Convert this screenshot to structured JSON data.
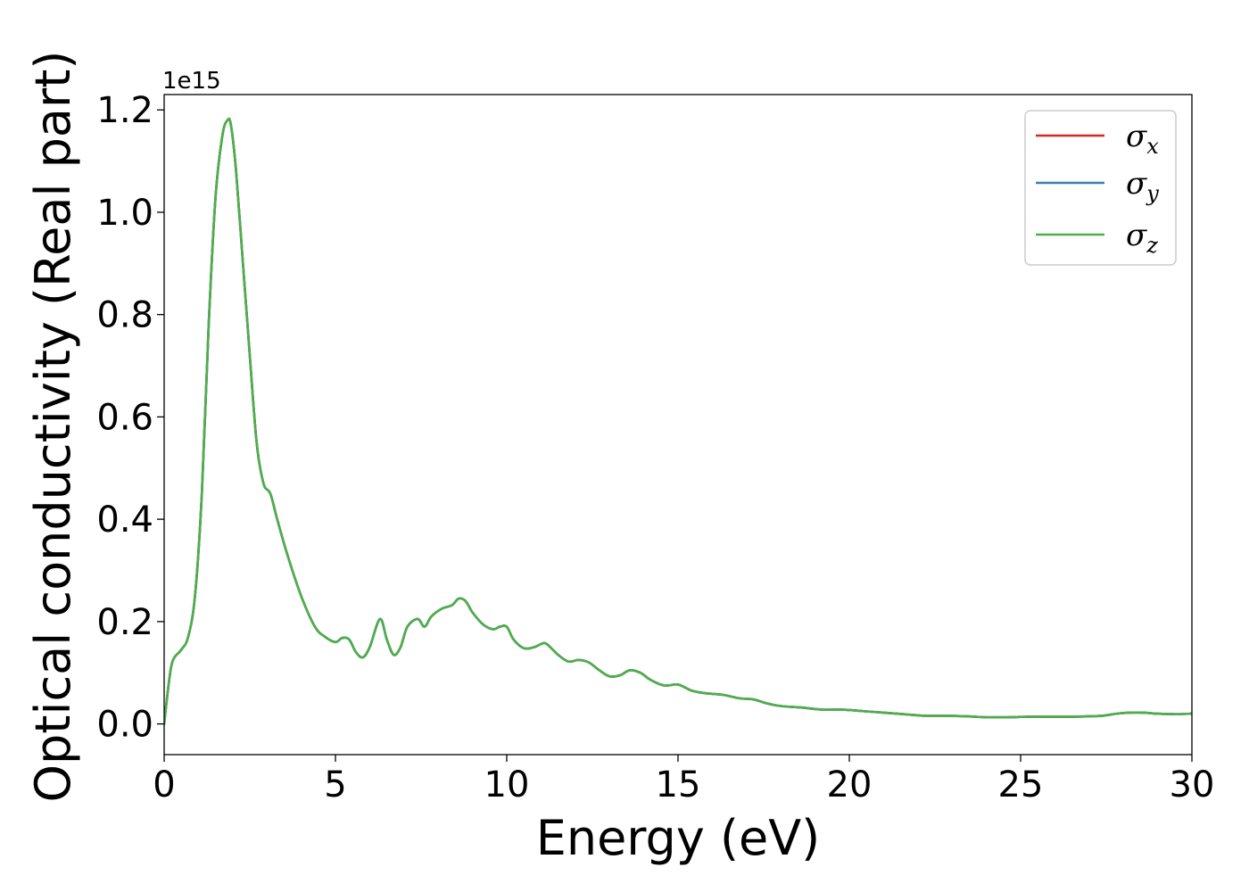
{
  "chart_data": {
    "type": "line",
    "xlabel": "Energy (eV)",
    "ylabel": "Optical conductivity (Real part)",
    "y_offset_label": "1e15",
    "xlim": [
      0,
      30
    ],
    "ylim": [
      -0.06,
      1.23
    ],
    "x_ticks": [
      0,
      5,
      10,
      15,
      20,
      25,
      30
    ],
    "x_tick_labels": [
      "0",
      "5",
      "10",
      "15",
      "20",
      "25",
      "30"
    ],
    "y_ticks": [
      0.0,
      0.2,
      0.4,
      0.6,
      0.8,
      1.0,
      1.2
    ],
    "y_tick_labels": [
      "0.0",
      "0.2",
      "0.4",
      "0.6",
      "0.8",
      "1.0",
      "1.2"
    ],
    "grid": false,
    "legend_position": "top-right",
    "x": [
      0,
      0.1,
      0.2,
      0.3,
      0.5,
      0.7,
      0.9,
      1.1,
      1.3,
      1.5,
      1.7,
      1.85,
      1.95,
      2.1,
      2.3,
      2.5,
      2.7,
      2.9,
      3.1,
      3.3,
      3.6,
      4.0,
      4.4,
      4.7,
      5.0,
      5.2,
      5.4,
      5.6,
      5.8,
      6.0,
      6.3,
      6.5,
      6.7,
      6.9,
      7.1,
      7.4,
      7.6,
      7.8,
      8.1,
      8.4,
      8.6,
      8.8,
      9.0,
      9.3,
      9.6,
      9.8,
      10.0,
      10.2,
      10.5,
      10.8,
      11.1,
      11.3,
      11.5,
      11.8,
      12.1,
      12.4,
      12.7,
      13.0,
      13.3,
      13.6,
      13.9,
      14.2,
      14.6,
      15.0,
      15.4,
      15.8,
      16.3,
      16.8,
      17.2,
      17.6,
      18.0,
      18.6,
      19.2,
      19.8,
      20.4,
      21.0,
      21.6,
      22.2,
      22.8,
      23.4,
      24.0,
      24.6,
      25.2,
      25.8,
      26.4,
      27.0,
      27.4,
      27.8,
      28.2,
      28.6,
      29.0,
      29.5,
      30.0
    ],
    "series": [
      {
        "name": "σx",
        "color": "#d62728",
        "values": [
          0.0,
          0.06,
          0.11,
          0.13,
          0.145,
          0.17,
          0.25,
          0.45,
          0.78,
          1.03,
          1.15,
          1.18,
          1.17,
          1.08,
          0.9,
          0.72,
          0.55,
          0.47,
          0.45,
          0.4,
          0.33,
          0.25,
          0.19,
          0.17,
          0.16,
          0.168,
          0.165,
          0.14,
          0.13,
          0.15,
          0.205,
          0.165,
          0.135,
          0.15,
          0.19,
          0.205,
          0.19,
          0.21,
          0.225,
          0.232,
          0.245,
          0.24,
          0.218,
          0.195,
          0.185,
          0.19,
          0.19,
          0.165,
          0.148,
          0.15,
          0.158,
          0.148,
          0.135,
          0.122,
          0.125,
          0.12,
          0.105,
          0.093,
          0.095,
          0.105,
          0.1,
          0.086,
          0.075,
          0.077,
          0.065,
          0.06,
          0.057,
          0.05,
          0.048,
          0.04,
          0.035,
          0.032,
          0.028,
          0.028,
          0.025,
          0.022,
          0.019,
          0.016,
          0.016,
          0.015,
          0.013,
          0.013,
          0.014,
          0.014,
          0.014,
          0.015,
          0.016,
          0.02,
          0.022,
          0.022,
          0.02,
          0.019,
          0.02
        ]
      },
      {
        "name": "σy",
        "color": "#377eb8",
        "values": [
          0.0,
          0.06,
          0.11,
          0.13,
          0.145,
          0.17,
          0.25,
          0.45,
          0.78,
          1.03,
          1.15,
          1.18,
          1.17,
          1.08,
          0.9,
          0.72,
          0.55,
          0.47,
          0.45,
          0.4,
          0.33,
          0.25,
          0.19,
          0.17,
          0.16,
          0.168,
          0.165,
          0.14,
          0.13,
          0.15,
          0.205,
          0.165,
          0.135,
          0.15,
          0.19,
          0.205,
          0.19,
          0.21,
          0.225,
          0.232,
          0.245,
          0.24,
          0.218,
          0.195,
          0.185,
          0.19,
          0.19,
          0.165,
          0.148,
          0.15,
          0.158,
          0.148,
          0.135,
          0.122,
          0.125,
          0.12,
          0.105,
          0.093,
          0.095,
          0.105,
          0.1,
          0.086,
          0.075,
          0.077,
          0.065,
          0.06,
          0.057,
          0.05,
          0.048,
          0.04,
          0.035,
          0.032,
          0.028,
          0.028,
          0.025,
          0.022,
          0.019,
          0.016,
          0.016,
          0.015,
          0.013,
          0.013,
          0.014,
          0.014,
          0.014,
          0.015,
          0.016,
          0.02,
          0.022,
          0.022,
          0.02,
          0.019,
          0.02
        ]
      },
      {
        "name": "σz",
        "color": "#4daf4a",
        "values": [
          0.0,
          0.06,
          0.11,
          0.13,
          0.145,
          0.17,
          0.25,
          0.45,
          0.78,
          1.03,
          1.15,
          1.18,
          1.17,
          1.08,
          0.9,
          0.72,
          0.55,
          0.47,
          0.45,
          0.4,
          0.33,
          0.25,
          0.19,
          0.17,
          0.16,
          0.168,
          0.165,
          0.14,
          0.13,
          0.15,
          0.205,
          0.165,
          0.135,
          0.15,
          0.19,
          0.205,
          0.19,
          0.21,
          0.225,
          0.232,
          0.245,
          0.24,
          0.218,
          0.195,
          0.185,
          0.19,
          0.19,
          0.165,
          0.148,
          0.15,
          0.158,
          0.148,
          0.135,
          0.122,
          0.125,
          0.12,
          0.105,
          0.093,
          0.095,
          0.105,
          0.1,
          0.086,
          0.075,
          0.077,
          0.065,
          0.06,
          0.057,
          0.05,
          0.048,
          0.04,
          0.035,
          0.032,
          0.028,
          0.028,
          0.025,
          0.022,
          0.019,
          0.016,
          0.016,
          0.015,
          0.013,
          0.013,
          0.014,
          0.014,
          0.014,
          0.015,
          0.016,
          0.02,
          0.022,
          0.022,
          0.02,
          0.019,
          0.02
        ]
      }
    ],
    "legend": [
      {
        "symbol": "σ",
        "subscript": "x",
        "color": "#d62728"
      },
      {
        "symbol": "σ",
        "subscript": "y",
        "color": "#377eb8"
      },
      {
        "symbol": "σ",
        "subscript": "z",
        "color": "#4daf4a"
      }
    ]
  }
}
